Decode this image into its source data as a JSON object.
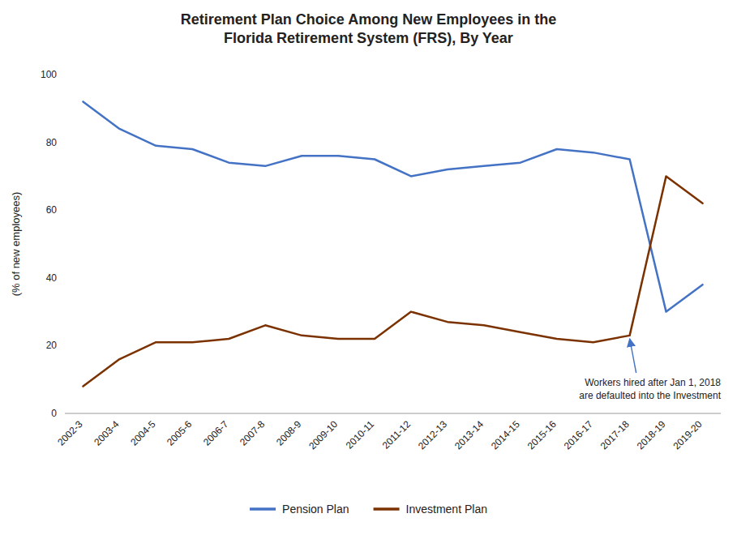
{
  "chart_data": {
    "type": "line",
    "title": "Retirement Plan Choice Among New Employees in the\nFlorida Retirement System (FRS), By Year",
    "y_label": "(% of new employees)",
    "categories": [
      "2002-3",
      "2003-4",
      "2004-5",
      "2005-6",
      "2006-7",
      "2007-8",
      "2008-9",
      "2009-10",
      "2010-11",
      "2011-12",
      "2012-13",
      "2013-14",
      "2014-15",
      "2015-16",
      "2016-17",
      "2017-18",
      "2018-19",
      "2019-20"
    ],
    "series": [
      {
        "name": "Pension Plan",
        "color": "#4472C4",
        "values": [
          92,
          84,
          79,
          78,
          74,
          73,
          76,
          76,
          75,
          70,
          72,
          73,
          74,
          78,
          77,
          75,
          30,
          38
        ]
      },
      {
        "name": "Investment Plan",
        "color": "#7B3200",
        "values": [
          8,
          16,
          21,
          21,
          22,
          26,
          23,
          22,
          22,
          30,
          27,
          26,
          24,
          22,
          21,
          23,
          70,
          62
        ]
      }
    ],
    "ylim": [
      0,
      100
    ],
    "yticks": [
      0,
      20,
      40,
      60,
      80,
      100
    ],
    "annotations": [
      {
        "text": "Workers hired after Jan 1, 2018\nare defaulted into the Investment",
        "x": "2017-18",
        "y": 23,
        "color": "#4472C4"
      }
    ],
    "legend": "bottom",
    "grid": false
  }
}
